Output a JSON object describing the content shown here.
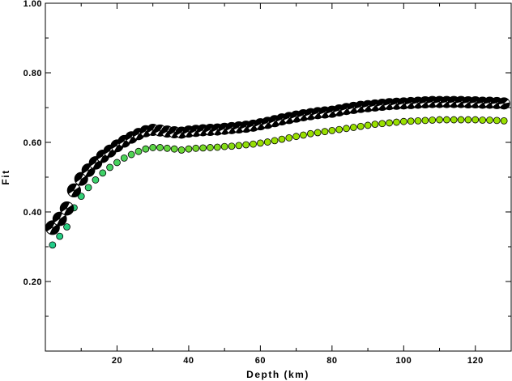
{
  "chart_data": {
    "type": "scatter",
    "title": "",
    "xlabel": "Depth (km)",
    "ylabel": "Fit",
    "xlim": [
      0,
      130
    ],
    "ylim": [
      0,
      1
    ],
    "xticks": [
      20,
      40,
      60,
      80,
      100,
      120
    ],
    "yticks": [
      0.2,
      0.4,
      0.6,
      0.8,
      1.0
    ],
    "xtick_labels": [
      "20",
      "40",
      "60",
      "80",
      "100",
      "120"
    ],
    "ytick_labels": [
      "0.20",
      "0.40",
      "0.60",
      "0.80",
      "1.00"
    ],
    "grid": false,
    "series": [
      {
        "marker": "focal-mechanism",
        "x": [
          2,
          4,
          6,
          8,
          10,
          12,
          14,
          16,
          18,
          20,
          22,
          24,
          26,
          28,
          30,
          32,
          34,
          36,
          38,
          40,
          42,
          44,
          46,
          48,
          50,
          52,
          54,
          56,
          58,
          60,
          62,
          64,
          66,
          68,
          70,
          72,
          74,
          76,
          78,
          80,
          82,
          84,
          86,
          88,
          90,
          92,
          94,
          96,
          98,
          100,
          102,
          104,
          106,
          108,
          110,
          112,
          114,
          116,
          118,
          120,
          122,
          124,
          126,
          128
        ],
        "values": [
          0.355,
          0.38,
          0.41,
          0.462,
          0.495,
          0.52,
          0.541,
          0.56,
          0.575,
          0.59,
          0.603,
          0.614,
          0.624,
          0.632,
          0.636,
          0.634,
          0.631,
          0.629,
          0.628,
          0.631,
          0.633,
          0.635,
          0.636,
          0.637,
          0.639,
          0.641,
          0.643,
          0.645,
          0.648,
          0.652,
          0.656,
          0.661,
          0.666,
          0.67,
          0.674,
          0.678,
          0.681,
          0.684,
          0.686,
          0.688,
          0.692,
          0.696,
          0.699,
          0.702,
          0.704,
          0.706,
          0.708,
          0.71,
          0.711,
          0.712,
          0.713,
          0.714,
          0.715,
          0.716,
          0.716,
          0.716,
          0.716,
          0.716,
          0.715,
          0.715,
          0.714,
          0.714,
          0.713,
          0.712
        ]
      },
      {
        "marker": "dot",
        "x": [
          2,
          4,
          6,
          8,
          10,
          12,
          14,
          16,
          18,
          20,
          22,
          24,
          26,
          28,
          30,
          32,
          34,
          36,
          38,
          40,
          42,
          44,
          46,
          48,
          50,
          52,
          54,
          56,
          58,
          60,
          62,
          64,
          66,
          68,
          70,
          72,
          74,
          76,
          78,
          80,
          82,
          84,
          86,
          88,
          90,
          92,
          94,
          96,
          98,
          100,
          102,
          104,
          106,
          108,
          110,
          112,
          114,
          116,
          118,
          120,
          122,
          124,
          126,
          128
        ],
        "values": [
          0.305,
          0.33,
          0.357,
          0.412,
          0.445,
          0.47,
          0.492,
          0.512,
          0.528,
          0.542,
          0.555,
          0.565,
          0.574,
          0.581,
          0.585,
          0.585,
          0.583,
          0.581,
          0.578,
          0.581,
          0.583,
          0.584,
          0.585,
          0.586,
          0.588,
          0.589,
          0.591,
          0.593,
          0.595,
          0.598,
          0.601,
          0.605,
          0.609,
          0.613,
          0.617,
          0.621,
          0.625,
          0.628,
          0.631,
          0.634,
          0.637,
          0.64,
          0.643,
          0.646,
          0.649,
          0.652,
          0.654,
          0.656,
          0.658,
          0.66,
          0.661,
          0.662,
          0.663,
          0.664,
          0.665,
          0.665,
          0.665,
          0.665,
          0.665,
          0.665,
          0.664,
          0.664,
          0.663,
          0.662
        ]
      }
    ],
    "colors": {
      "frame": "#000000",
      "mechanism_fill": "#000000",
      "mechanism_bg": "#ffffff",
      "dot_start": "#22cc88",
      "dot_end": "#99e000",
      "dot_stroke": "#000000"
    }
  }
}
